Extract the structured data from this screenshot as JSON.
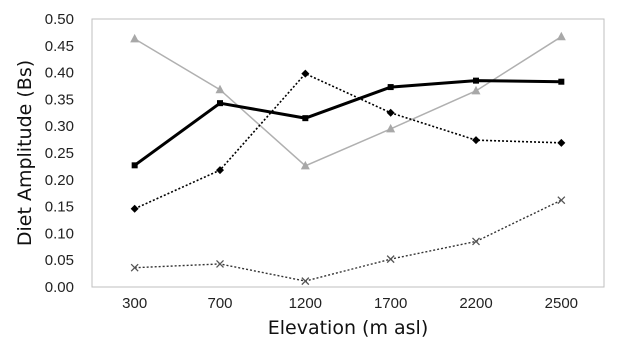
{
  "chart_data": {
    "type": "line",
    "title": "",
    "xlabel": "Elevation (m asl)",
    "ylabel": "Diet Amplitude (Bs)",
    "categories": [
      "300",
      "700",
      "1200",
      "1700",
      "2200",
      "2500"
    ],
    "ylim": [
      0,
      0.5
    ],
    "yticks": [
      "0.00",
      "0.05",
      "0.10",
      "0.15",
      "0.20",
      "0.25",
      "0.30",
      "0.35",
      "0.40",
      "0.45",
      "0.50"
    ],
    "grid": false,
    "legend": "none",
    "series": [
      {
        "style": "solid-black-thick",
        "color": "#000000",
        "marker": "square",
        "values": [
          0.227,
          0.343,
          0.315,
          0.373,
          0.385,
          0.383
        ]
      },
      {
        "style": "solid-gray-triangle",
        "color": "#aaaaaa",
        "marker": "triangle",
        "values": [
          0.463,
          0.368,
          0.226,
          0.295,
          0.366,
          0.467
        ]
      },
      {
        "style": "dotted-black-diamond",
        "color": "#000000",
        "marker": "diamond",
        "values": [
          0.146,
          0.218,
          0.398,
          0.325,
          0.274,
          0.269
        ]
      },
      {
        "style": "dotted-black-x",
        "color": "#555555",
        "marker": "x",
        "values": [
          0.036,
          0.043,
          0.011,
          0.052,
          0.085,
          0.162
        ]
      }
    ]
  }
}
